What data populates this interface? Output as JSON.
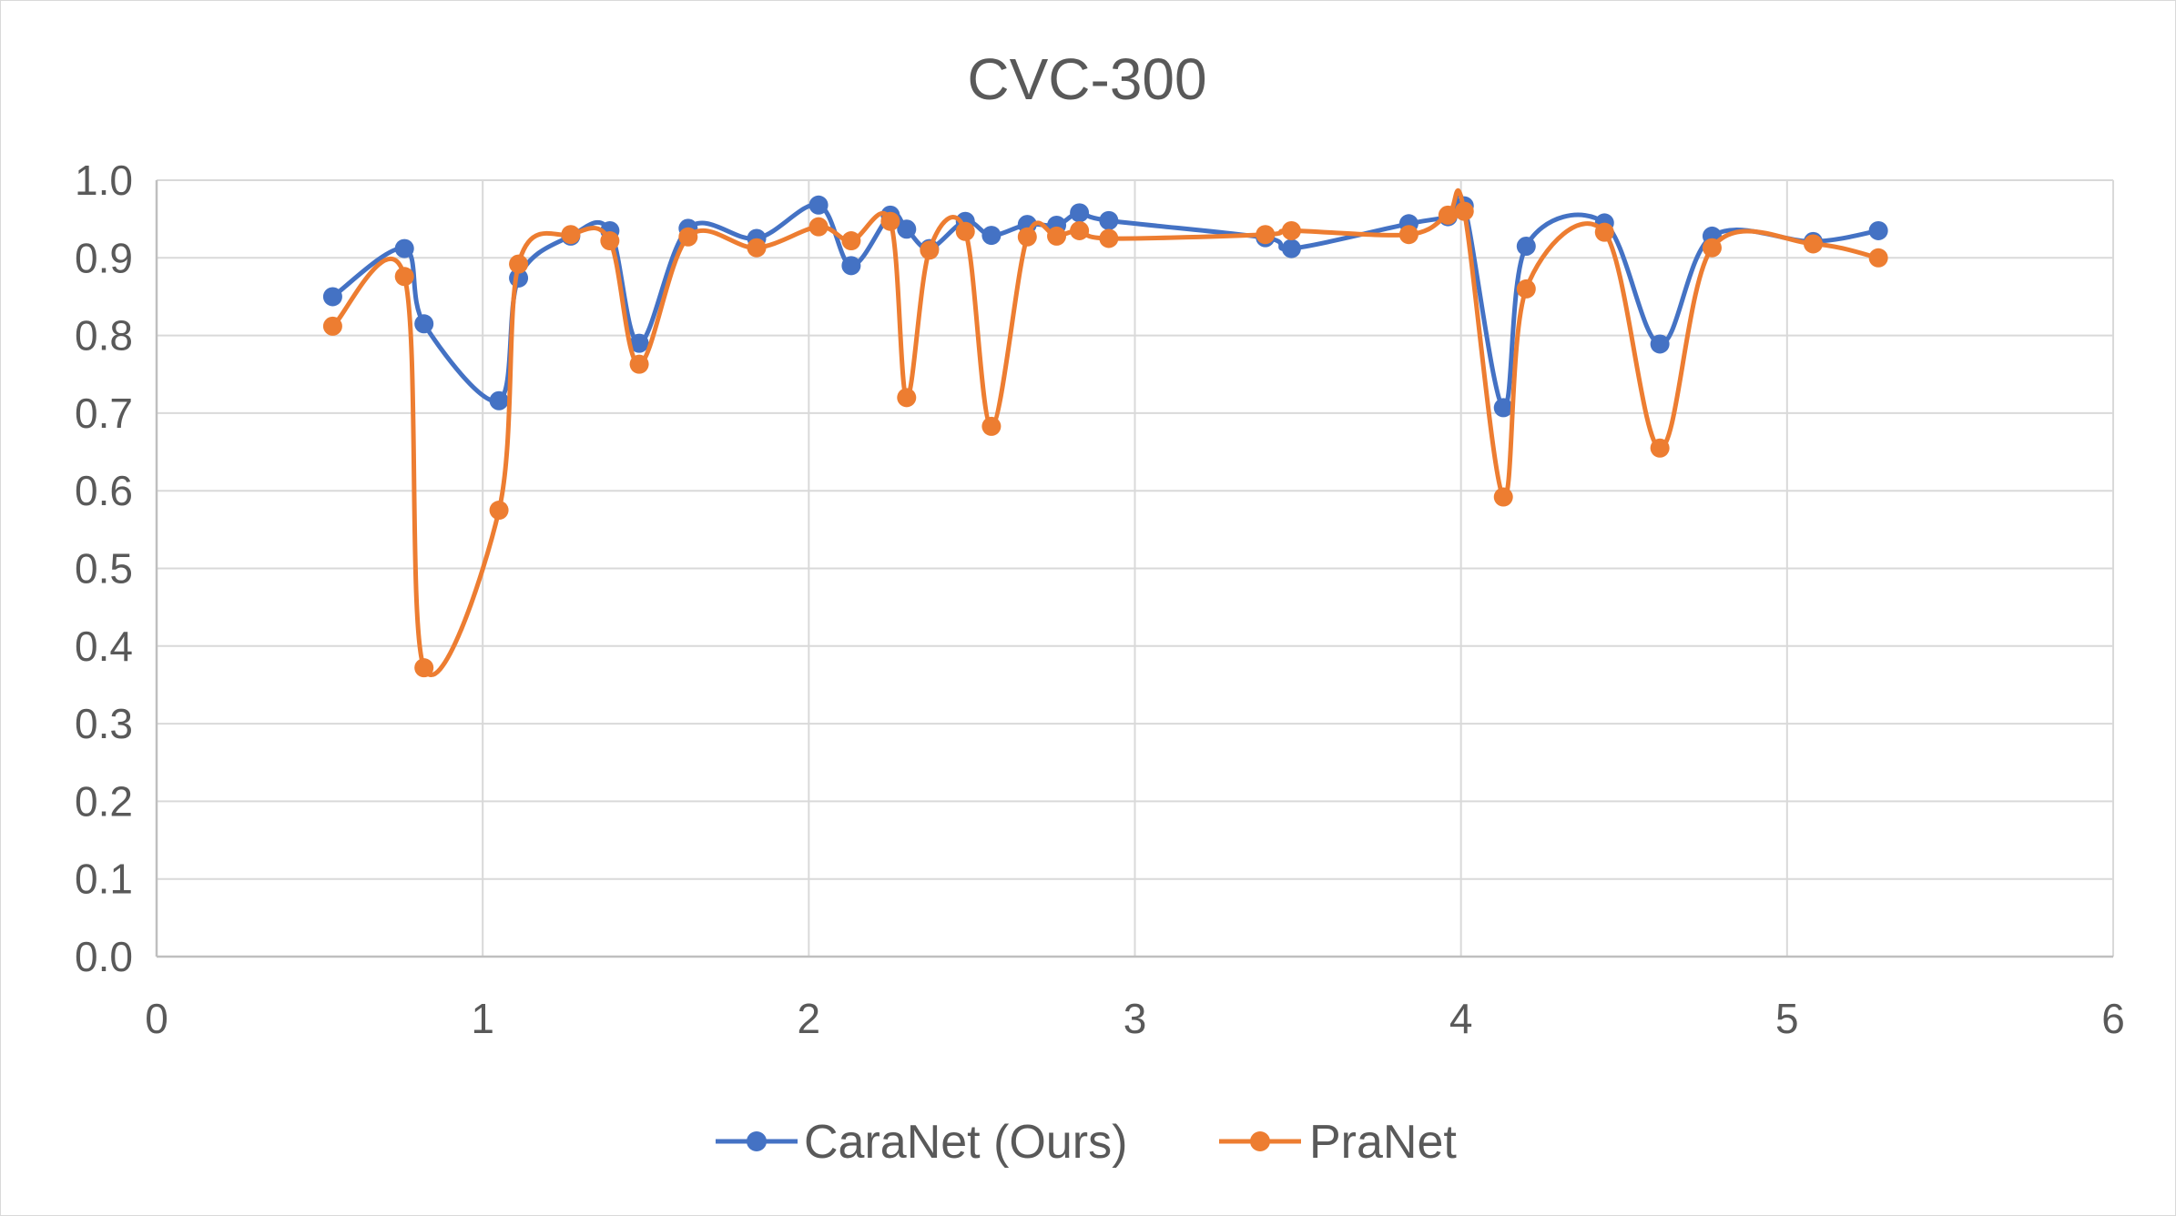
{
  "chart_data": {
    "type": "scatter",
    "title": "CVC-300",
    "xlabel": "",
    "ylabel": "",
    "xlim": [
      0,
      6
    ],
    "ylim": [
      0,
      1
    ],
    "x_ticks": [
      "0",
      "1",
      "2",
      "3",
      "4",
      "5",
      "6"
    ],
    "y_ticks": [
      "0.0",
      "0.1",
      "0.2",
      "0.3",
      "0.4",
      "0.5",
      "0.6",
      "0.7",
      "0.8",
      "0.9",
      "1.0"
    ],
    "grid": "both",
    "smooth_lines": true,
    "legend_position": "bottom",
    "series": [
      {
        "name": "CaraNet (Ours)",
        "color": "#4472c4",
        "x": [
          0.54,
          0.76,
          0.82,
          1.05,
          1.11,
          1.27,
          1.39,
          1.48,
          1.63,
          1.84,
          2.03,
          2.13,
          2.25,
          2.3,
          2.37,
          2.48,
          2.56,
          2.67,
          2.76,
          2.83,
          2.92,
          3.4,
          3.48,
          3.84,
          3.96,
          4.01,
          4.13,
          4.2,
          4.44,
          4.61,
          4.77,
          5.08,
          5.28
        ],
        "y": [
          0.85,
          0.912,
          0.815,
          0.716,
          0.874,
          0.928,
          0.935,
          0.79,
          0.938,
          0.925,
          0.968,
          0.89,
          0.955,
          0.937,
          0.912,
          0.947,
          0.929,
          0.943,
          0.942,
          0.958,
          0.948,
          0.926,
          0.912,
          0.944,
          0.953,
          0.967,
          0.707,
          0.915,
          0.945,
          0.789,
          0.928,
          0.921,
          0.935
        ]
      },
      {
        "name": "PraNet",
        "color": "#ed7d31",
        "x": [
          0.54,
          0.76,
          0.82,
          1.05,
          1.11,
          1.27,
          1.39,
          1.48,
          1.63,
          1.84,
          2.03,
          2.13,
          2.25,
          2.3,
          2.37,
          2.48,
          2.56,
          2.67,
          2.76,
          2.83,
          2.92,
          3.4,
          3.48,
          3.84,
          3.96,
          4.01,
          4.13,
          4.2,
          4.44,
          4.61,
          4.77,
          5.08,
          5.28
        ],
        "y": [
          0.812,
          0.876,
          0.372,
          0.575,
          0.892,
          0.93,
          0.922,
          0.763,
          0.927,
          0.913,
          0.94,
          0.922,
          0.947,
          0.72,
          0.91,
          0.934,
          0.683,
          0.927,
          0.928,
          0.935,
          0.925,
          0.93,
          0.935,
          0.93,
          0.955,
          0.96,
          0.592,
          0.86,
          0.933,
          0.655,
          0.913,
          0.918,
          0.9
        ]
      }
    ]
  }
}
